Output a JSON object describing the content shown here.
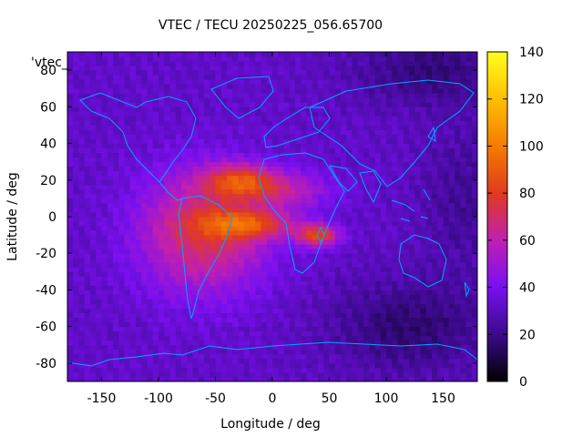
{
  "chart_data": {
    "type": "heatmap",
    "title": "VTEC / TECU 20250225_056.65700",
    "xlabel": "Longitude / deg",
    "ylabel": "Latitude / deg",
    "xlim": [
      -180,
      180
    ],
    "ylim": [
      -90,
      90
    ],
    "x_ticks": [
      -150,
      -100,
      -50,
      0,
      50,
      100,
      150
    ],
    "y_ticks": [
      80,
      60,
      40,
      20,
      0,
      -20,
      -40,
      -60,
      -80
    ],
    "colorbar": {
      "range": [
        0,
        140
      ],
      "ticks": [
        0,
        20,
        40,
        60,
        80,
        100,
        120,
        140
      ],
      "palette": [
        "#000000",
        "#3a0a8a",
        "#7a10f0",
        "#c020b0",
        "#e03a20",
        "#f47a00",
        "#ffc000",
        "#ffff20"
      ]
    },
    "legend_key": "'vtec_",
    "background_tec": 32,
    "features": [
      {
        "name": "equatorial anomaly crest north",
        "lon": -30,
        "lat": 20,
        "peak_tec": 95
      },
      {
        "name": "equatorial anomaly crest south",
        "lon": -20,
        "lat": -5,
        "peak_tec": 92
      },
      {
        "name": "southern crest extension",
        "lon": 40,
        "lat": -10,
        "peak_tec": 98
      },
      {
        "name": "main daytime bulge",
        "lon": -60,
        "lat": -5,
        "peak_tec": 78
      },
      {
        "name": "night-side low",
        "lon": 120,
        "lat": -60,
        "peak_tec": 14
      }
    ]
  }
}
